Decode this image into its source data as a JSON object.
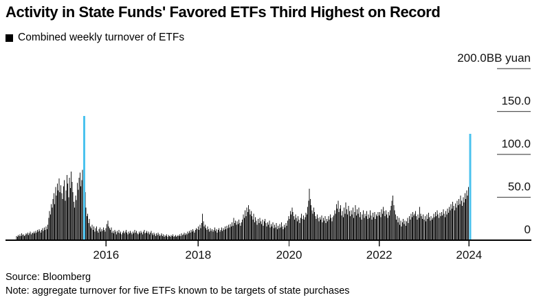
{
  "header": {
    "title": "Activity in State Funds' Favored ETFs Third Highest on Record",
    "legend": {
      "marker": "black-square",
      "label": "Combined weekly turnover of ETFs"
    }
  },
  "footer": {
    "source": "Source: Bloomberg",
    "note": "Note: aggregate turnover for five ETFs known to be targets of state purchases"
  },
  "chart_data": {
    "type": "bar",
    "title": "Combined weekly turnover of ETFs",
    "unit_label": "BB yuan",
    "x_axis": "weekly, Jan 2014 - Feb 2024",
    "x_tick_labels": [
      "2016",
      "2018",
      "2020",
      "2022",
      "2024"
    ],
    "y_ticks": [
      0,
      50,
      100,
      150,
      200
    ],
    "y_tick_labels": [
      "0",
      "50.0",
      "100.0",
      "150.0",
      "200.0"
    ],
    "ylim": [
      0,
      200
    ],
    "grid": false,
    "legend_position": "top-left",
    "bar_color": "#141414",
    "highlight_color": "#4bc2ee",
    "highlight_indices": [
      78,
      522
    ],
    "highlight_note": "blue bars: July 2015 (~145BB) and Feb 2024 (~124BB), third highest on record",
    "values": [
      5,
      4,
      6,
      5,
      7,
      5,
      8,
      6,
      7,
      5,
      6,
      8,
      7,
      9,
      6,
      8,
      10,
      7,
      9,
      8,
      10,
      8,
      11,
      9,
      12,
      10,
      13,
      11,
      9,
      12,
      14,
      11,
      15,
      12,
      16,
      13,
      18,
      26,
      34,
      30,
      42,
      38,
      48,
      55,
      42,
      62,
      52,
      66,
      58,
      72,
      56,
      64,
      55,
      48,
      63,
      70,
      46,
      58,
      76,
      66,
      50,
      73,
      61,
      80,
      68,
      56,
      45,
      38,
      52,
      47,
      67,
      59,
      73,
      79,
      63,
      70,
      82,
      74,
      145,
      56,
      38,
      28,
      31,
      20,
      25,
      16,
      14,
      18,
      12,
      16,
      10,
      14,
      16,
      11,
      9,
      13,
      15,
      10,
      13,
      11,
      15,
      12,
      10,
      14,
      19,
      23,
      16,
      14,
      12,
      15,
      9,
      11,
      8,
      12,
      10,
      7,
      11,
      9,
      12,
      8,
      10,
      7,
      9,
      11,
      8,
      10,
      12,
      9,
      7,
      10,
      8,
      11,
      9,
      7,
      10,
      8,
      12,
      9,
      11,
      8,
      7,
      10,
      8,
      11,
      9,
      7,
      10,
      12,
      8,
      9,
      11,
      8,
      10,
      7,
      9,
      11,
      8,
      6,
      9,
      7,
      5,
      8,
      6,
      9,
      7,
      5,
      6,
      8,
      5,
      7,
      4,
      6,
      5,
      7,
      4,
      6,
      5,
      4,
      6,
      5,
      7,
      4,
      5,
      6,
      4,
      5,
      6,
      5,
      7,
      5,
      8,
      6,
      7,
      9,
      6,
      8,
      7,
      10,
      8,
      11,
      9,
      12,
      10,
      13,
      11,
      9,
      12,
      14,
      13,
      16,
      12,
      18,
      14,
      20,
      31,
      22,
      16,
      18,
      14,
      12,
      16,
      13,
      10,
      14,
      11,
      13,
      10,
      12,
      15,
      11,
      13,
      9,
      12,
      14,
      10,
      12,
      15,
      11,
      14,
      12,
      16,
      13,
      17,
      14,
      18,
      15,
      19,
      16,
      21,
      17,
      26,
      20,
      23,
      18,
      22,
      19,
      24,
      20,
      17,
      21,
      24,
      30,
      26,
      35,
      28,
      38,
      33,
      41,
      36,
      30,
      34,
      28,
      24,
      31,
      21,
      27,
      23,
      18,
      25,
      20,
      26,
      22,
      19,
      24,
      17,
      22,
      25,
      20,
      16,
      21,
      18,
      23,
      15,
      19,
      16,
      21,
      14,
      18,
      15,
      20,
      13,
      17,
      14,
      19,
      15,
      21,
      16,
      13,
      18,
      15,
      20,
      17,
      23,
      28,
      25,
      34,
      30,
      38,
      33,
      28,
      24,
      30,
      26,
      22,
      28,
      24,
      20,
      26,
      31,
      25,
      29,
      24,
      27,
      32,
      30,
      39,
      46,
      60,
      48,
      41,
      35,
      31,
      38,
      33,
      28,
      25,
      30,
      26,
      22,
      27,
      24,
      29,
      21,
      26,
      23,
      28,
      20,
      25,
      22,
      28,
      24,
      30,
      26,
      22,
      27,
      29,
      35,
      31,
      42,
      37,
      46,
      33,
      37,
      41,
      29,
      34,
      27,
      38,
      31,
      44,
      36,
      30,
      40,
      34,
      28,
      35,
      30,
      38,
      26,
      33,
      41,
      29,
      36,
      31,
      38,
      27,
      33,
      24,
      30,
      35,
      26,
      31,
      28,
      34,
      25,
      30,
      26,
      35,
      29,
      24,
      32,
      27,
      33,
      25,
      30,
      28,
      33,
      29,
      33,
      27,
      36,
      31,
      39,
      34,
      28,
      35,
      30,
      26,
      33,
      29,
      35,
      40,
      46,
      52,
      41,
      35,
      30,
      24,
      28,
      21,
      26,
      18,
      23,
      16,
      21,
      25,
      19,
      23,
      17,
      22,
      26,
      20,
      28,
      24,
      31,
      27,
      33,
      29,
      31,
      34,
      28,
      24,
      30,
      26,
      39,
      31,
      28,
      25,
      30,
      24,
      28,
      22,
      30,
      25,
      32,
      27,
      23,
      28,
      24,
      26,
      31,
      27,
      33,
      28,
      35,
      30,
      26,
      32,
      28,
      33,
      29,
      36,
      31,
      27,
      34,
      30,
      37,
      32,
      39,
      35,
      42,
      37,
      45,
      40,
      35,
      43,
      38,
      46,
      41,
      48,
      42,
      52,
      46,
      40,
      50,
      44,
      55,
      48,
      58,
      52,
      62,
      56,
      124
    ]
  }
}
